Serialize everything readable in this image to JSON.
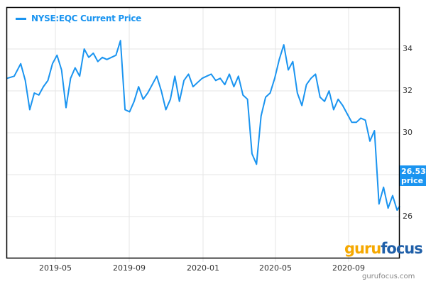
{
  "chart_data": {
    "type": "line",
    "title": "",
    "legend": [
      "NYSE:EQC Current Price"
    ],
    "xlabel": "",
    "ylabel": "",
    "ylim": [
      23.8,
      35.2
    ],
    "grid": true,
    "legend_position": "top-left",
    "x_ticks": [
      "2019-05",
      "2019-09",
      "2020-01",
      "2020-05",
      "2020-09"
    ],
    "y_ticks": [
      26,
      28,
      30,
      32,
      34
    ],
    "last_value_label": "26.53",
    "last_value_sublabel": "price",
    "series": [
      {
        "name": "NYSE:EQC Current Price",
        "color": "#1a94f0",
        "x_date": [
          "2019-03-04",
          "2019-03-15",
          "2019-03-25",
          "2019-04-01",
          "2019-04-08",
          "2019-04-15",
          "2019-04-22",
          "2019-04-29",
          "2019-05-06",
          "2019-05-13",
          "2019-05-20",
          "2019-05-27",
          "2019-06-03",
          "2019-06-10",
          "2019-06-17",
          "2019-06-24",
          "2019-07-01",
          "2019-07-08",
          "2019-07-15",
          "2019-07-22",
          "2019-07-29",
          "2019-08-05",
          "2019-08-12",
          "2019-08-19",
          "2019-08-26",
          "2019-09-02",
          "2019-09-09",
          "2019-09-16",
          "2019-09-23",
          "2019-09-30",
          "2019-10-07",
          "2019-10-14",
          "2019-10-21",
          "2019-10-28",
          "2019-11-04",
          "2019-11-11",
          "2019-11-18",
          "2019-11-25",
          "2019-12-02",
          "2019-12-09",
          "2019-12-16",
          "2019-12-23",
          "2019-12-30",
          "2020-01-06",
          "2020-01-13",
          "2020-01-20",
          "2020-01-27",
          "2020-02-03",
          "2020-02-10",
          "2020-02-17",
          "2020-02-24",
          "2020-03-02",
          "2020-03-09",
          "2020-03-16",
          "2020-03-23",
          "2020-03-30",
          "2020-04-06",
          "2020-04-13",
          "2020-04-20",
          "2020-04-27",
          "2020-05-04",
          "2020-05-11",
          "2020-05-18",
          "2020-05-25",
          "2020-06-01",
          "2020-06-08",
          "2020-06-15",
          "2020-06-22",
          "2020-06-29",
          "2020-07-06",
          "2020-07-13",
          "2020-07-20",
          "2020-07-27",
          "2020-08-03",
          "2020-08-10",
          "2020-08-17",
          "2020-08-24",
          "2020-08-31",
          "2020-09-07",
          "2020-09-14",
          "2020-09-21",
          "2020-09-28",
          "2020-10-05",
          "2020-10-12",
          "2020-10-19",
          "2020-10-26",
          "2020-10-30"
        ],
        "values": [
          32.6,
          32.7,
          33.3,
          32.5,
          31.1,
          31.9,
          31.8,
          32.2,
          32.5,
          33.3,
          33.7,
          33.0,
          31.2,
          32.6,
          33.1,
          32.7,
          34.0,
          33.6,
          33.8,
          33.4,
          33.6,
          33.5,
          33.6,
          33.7,
          34.4,
          31.1,
          31.0,
          31.5,
          32.2,
          31.6,
          31.9,
          32.3,
          32.7,
          32.0,
          31.1,
          31.6,
          32.7,
          31.5,
          32.5,
          32.8,
          32.2,
          32.4,
          32.6,
          32.7,
          32.8,
          32.5,
          32.6,
          32.3,
          32.8,
          32.2,
          32.7,
          31.8,
          31.6,
          29.0,
          28.5,
          30.8,
          31.7,
          31.9,
          32.6,
          33.5,
          34.2,
          33.0,
          33.4,
          31.9,
          31.3,
          32.3,
          32.6,
          32.8,
          31.7,
          31.5,
          32.0,
          31.1,
          31.6,
          31.3,
          30.9,
          30.5,
          30.5,
          30.7,
          30.6,
          29.6,
          30.1,
          26.6,
          27.4,
          26.4,
          27.0,
          26.3,
          26.5
        ]
      }
    ]
  },
  "legend": {
    "label": "NYSE:EQC Current Price"
  },
  "axes": {
    "y_ticks": [
      "34",
      "32",
      "30",
      "26"
    ],
    "x_ticks": [
      "2019-05",
      "2019-09",
      "2020-01",
      "2020-05",
      "2020-09"
    ]
  },
  "price_flag": {
    "value": "26.53",
    "label": "price"
  },
  "watermark": {
    "logo_guru": "guru",
    "logo_focus": "focus",
    "site": "gurufocus.com"
  },
  "colors": {
    "line": "#1a94f0",
    "grid": "#e6e6e6",
    "axis": "#000000",
    "logo_orange": "#f5a800",
    "logo_blue": "#1f5fa8"
  }
}
